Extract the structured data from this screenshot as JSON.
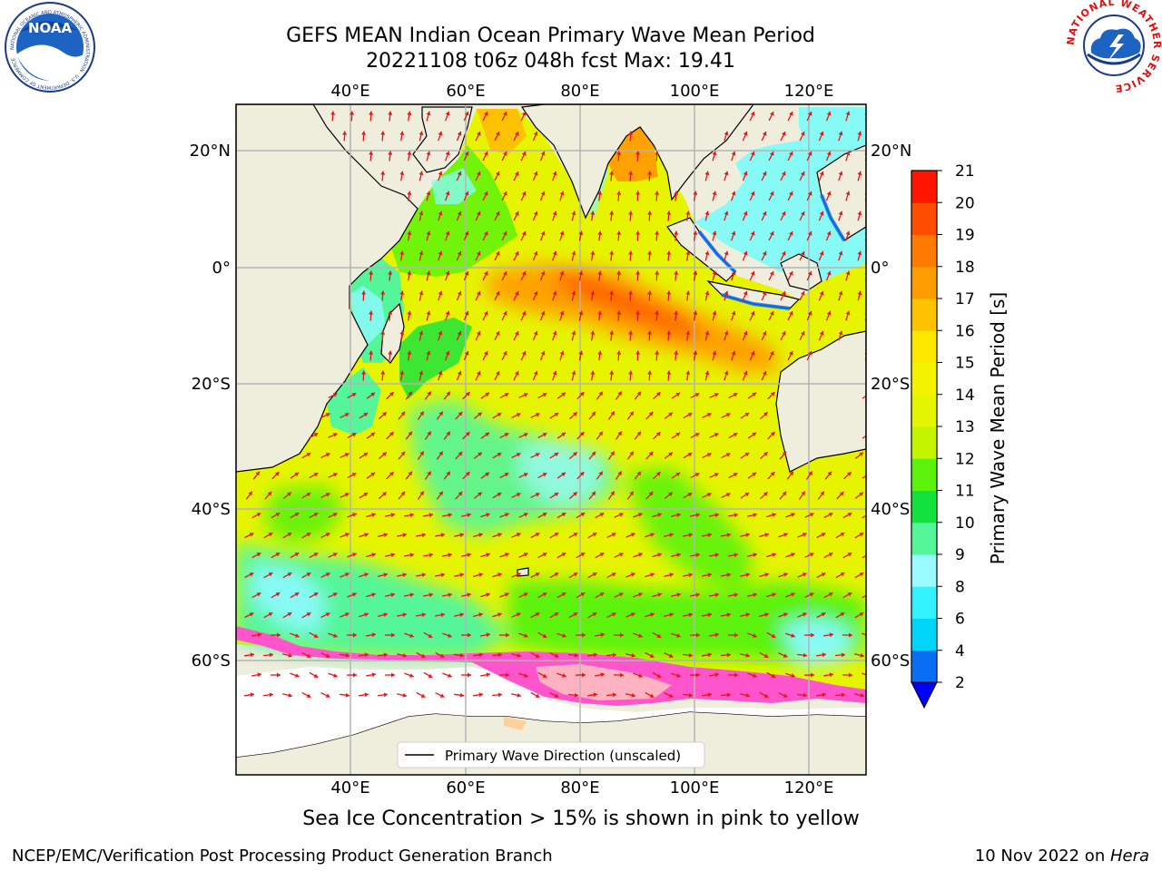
{
  "title_line1": "GEFS MEAN Indian Ocean Primary Wave Mean Period",
  "title_line2": "20221108 t06z 048h fcst   Max: 19.41",
  "map": {
    "lon_range": [
      20,
      130
    ],
    "lat_range": [
      -70,
      28
    ],
    "lon_ticks": [
      "40°E",
      "60°E",
      "80°E",
      "100°E",
      "120°E"
    ],
    "lat_ticks": [
      "20°N",
      "0°",
      "20°S",
      "40°S",
      "60°S"
    ],
    "grid": true,
    "arrow_color": "#e8131b",
    "land_color": "#efeddc",
    "ice_color": "#ff55cc"
  },
  "colorbar": {
    "label": "Primary Wave Mean Period [s]",
    "ticks": [
      "2",
      "4",
      "6",
      "8",
      "9",
      "10",
      "11",
      "12",
      "13",
      "14",
      "15",
      "16",
      "17",
      "18",
      "19",
      "20",
      "21"
    ],
    "colors": [
      "#0a6ef5",
      "#00d4f8",
      "#33f2ff",
      "#99fbff",
      "#55f59a",
      "#13e23e",
      "#5cf20c",
      "#c4f400",
      "#e3f500",
      "#f3f300",
      "#ffe800",
      "#ffc200",
      "#ff9d00",
      "#ff7a00",
      "#ff4d00",
      "#ff1500"
    ],
    "extend_color": "#0000ff"
  },
  "legend": "Primary Wave Direction (unscaled)",
  "subtitle": "Sea Ice Concentration > 15% is shown in pink to yellow",
  "credit": "NCEP/EMC/Verification Post Processing Product Generation Branch",
  "date_prefix": "10 Nov 2022 on ",
  "date_host": "Hera",
  "logos": {
    "noaa_text": "NOAA",
    "noaa_ring_text": "NATIONAL OCEANIC AND ATMOSPHERIC ADMINISTRATION · U.S. DEPARTMENT OF COMMERCE",
    "nws_ring_text": "NATIONAL WEATHER SERVICE"
  }
}
